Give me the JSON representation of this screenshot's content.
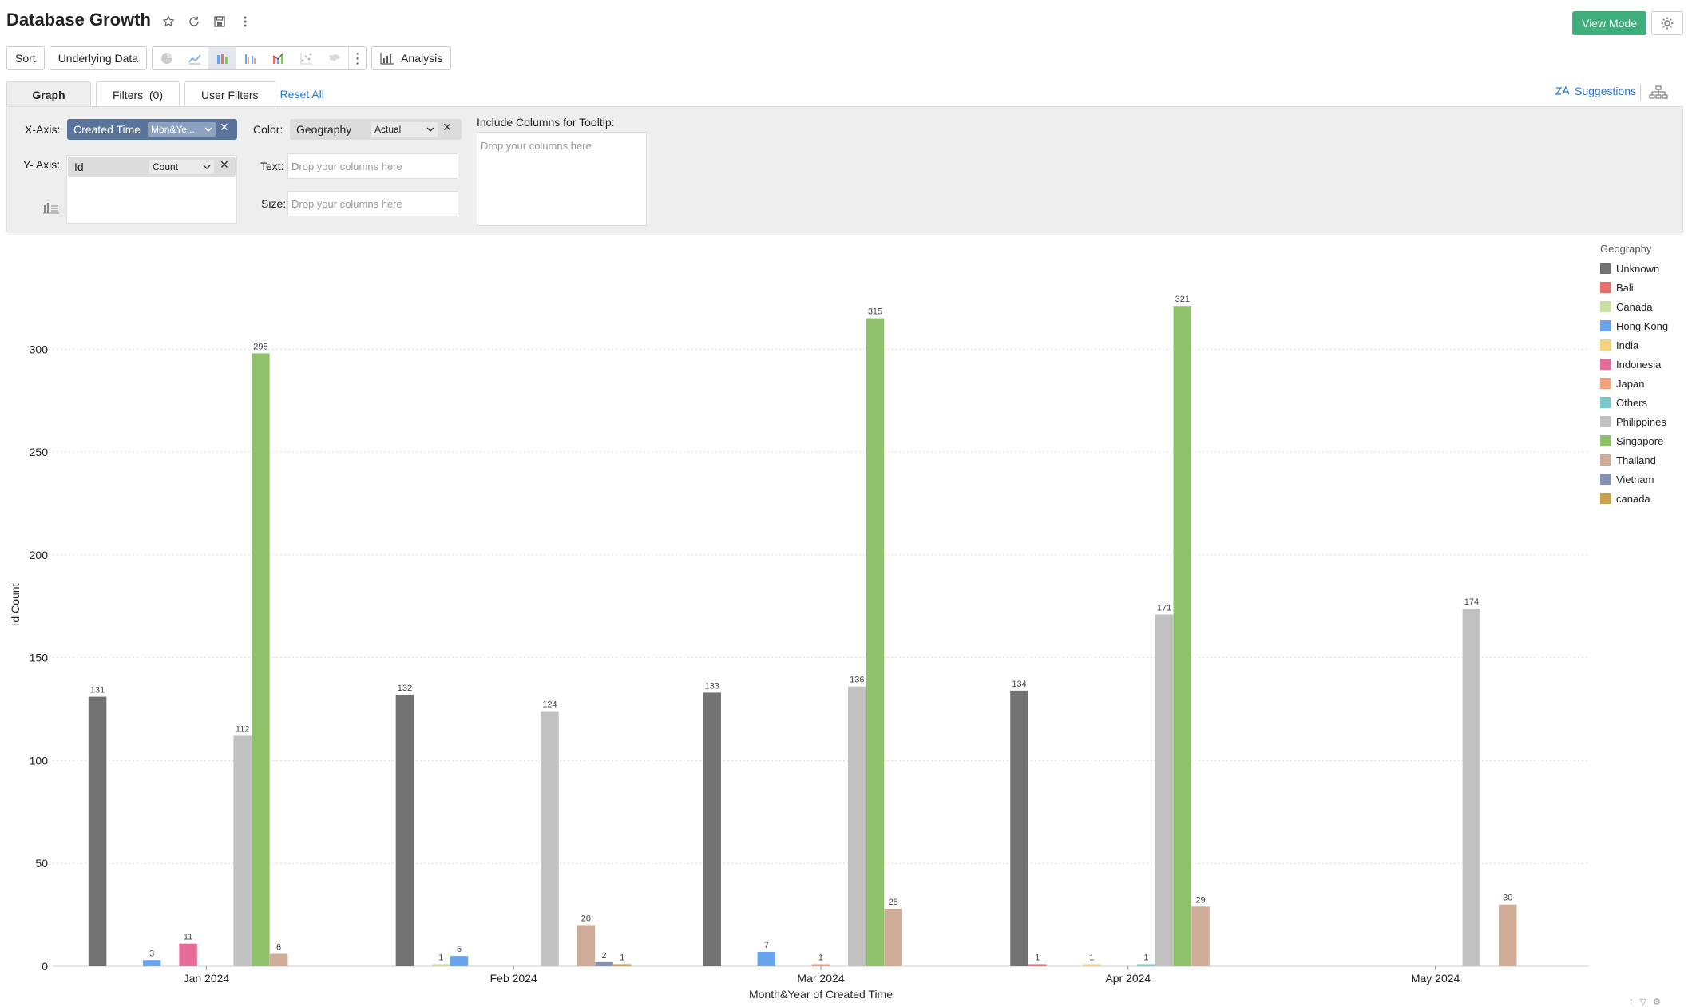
{
  "header": {
    "title": "Database Growth",
    "view_mode_label": "View Mode"
  },
  "toolbar": {
    "sort_label": "Sort",
    "underlying_label": "Underlying Data",
    "analysis_label": "Analysis"
  },
  "tabs": {
    "graph": "Graph",
    "filters": "Filters  (0)",
    "user_filters": "User Filters",
    "reset_all": "Reset All",
    "suggestions": "Suggestions"
  },
  "shelf": {
    "x_label": "X-Axis:",
    "y_label": "Y- Axis:",
    "color_label": "Color:",
    "text_label": "Text:",
    "size_label": "Size:",
    "tooltip_label": "Include Columns for Tooltip:",
    "x_field": "Created Time",
    "x_agg": "Mon&Ye...",
    "y_field": "Id",
    "y_agg": "Count",
    "color_field": "Geography",
    "color_agg": "Actual",
    "drop_placeholder": "Drop your columns here"
  },
  "chart_data": {
    "type": "bar",
    "ylabel": "Id Count",
    "xlabel": "Month&Year of Created Time",
    "ylim": [
      0,
      330
    ],
    "yticks": [
      0,
      50,
      100,
      150,
      200,
      250,
      300
    ],
    "grid": true,
    "legend_title": "Geography",
    "legend_position": "right",
    "categories": [
      "Jan 2024",
      "Feb 2024",
      "Mar 2024",
      "Apr 2024",
      "May 2024"
    ],
    "series": [
      {
        "name": "Unknown",
        "color": "#737373",
        "values": [
          131,
          132,
          133,
          134,
          null
        ]
      },
      {
        "name": "Bali",
        "color": "#e8706b",
        "values": [
          null,
          null,
          null,
          1,
          null
        ]
      },
      {
        "name": "Canada",
        "color": "#c5e0a1",
        "values": [
          null,
          1,
          null,
          null,
          null
        ]
      },
      {
        "name": "Hong Kong",
        "color": "#6aa4ec",
        "values": [
          3,
          5,
          7,
          null,
          null
        ]
      },
      {
        "name": "India",
        "color": "#f3d37d",
        "values": [
          null,
          null,
          null,
          1,
          null
        ]
      },
      {
        "name": "Indonesia",
        "color": "#e66b97",
        "values": [
          11,
          null,
          null,
          null,
          null
        ]
      },
      {
        "name": "Japan",
        "color": "#f2a27a",
        "values": [
          null,
          null,
          1,
          null,
          null
        ]
      },
      {
        "name": "Others",
        "color": "#7ec8c9",
        "values": [
          null,
          null,
          null,
          1,
          null
        ]
      },
      {
        "name": "Philippines",
        "color": "#c1c1c1",
        "values": [
          112,
          124,
          136,
          171,
          174
        ]
      },
      {
        "name": "Singapore",
        "color": "#8fc06a",
        "values": [
          298,
          null,
          315,
          321,
          null
        ]
      },
      {
        "name": "Thailand",
        "color": "#cfac98",
        "values": [
          6,
          20,
          28,
          29,
          30
        ]
      },
      {
        "name": "Vietnam",
        "color": "#8393b5",
        "values": [
          null,
          2,
          null,
          null,
          null
        ]
      },
      {
        "name": "canada",
        "color": "#c9a14c",
        "values": [
          null,
          1,
          null,
          null,
          null
        ]
      }
    ]
  }
}
